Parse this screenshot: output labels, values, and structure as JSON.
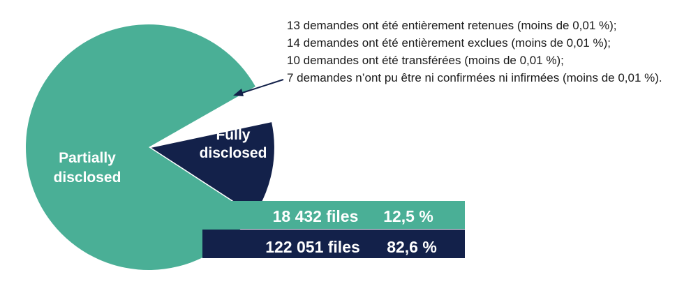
{
  "chart_data": {
    "type": "pie",
    "slices": [
      {
        "label": "Partially disclosed",
        "files": "122 051 files",
        "percent_text": "82,6 %",
        "value": 82.6,
        "color": "#4aaf96"
      },
      {
        "label": "Fully disclosed",
        "files": "18 432 files",
        "percent_text": "12,5 %",
        "value": 12.5,
        "color": "#13214a"
      },
      {
        "label": "",
        "value": 4.9,
        "color": "#ffffff"
      }
    ],
    "annotation_lines": [
      "13 demandes ont été entièrement retenues (moins de 0,01 %);",
      "14 demandes ont été entièrement exclues (moins de 0,01 %);",
      "10 demandes ont été transférées (moins de 0,01 %);",
      "7 demandes n’ont pu être ni confirmées ni infirmées (moins de 0,01 %)."
    ]
  }
}
